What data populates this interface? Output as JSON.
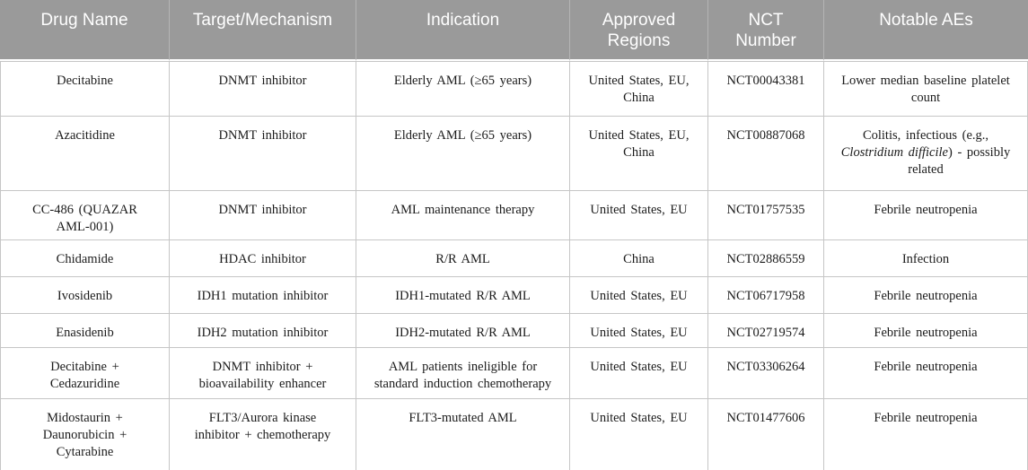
{
  "colors": {
    "header_bg": "#9a9a9a",
    "header_text": "#ffffff",
    "header_divider": "#b5b5b5",
    "grid_border": "#c6c6c6",
    "bottom_border": "#a9a9a9",
    "body_text": "#1b1b1b",
    "page_bg": "#ffffff"
  },
  "table": {
    "columns": [
      {
        "key": "drug-name",
        "label": "Drug Name"
      },
      {
        "key": "target-mechanism",
        "label": "Target/Mechanism"
      },
      {
        "key": "indication",
        "label": "Indication"
      },
      {
        "key": "approved-regions",
        "label": "Approved\nRegions"
      },
      {
        "key": "nct-number",
        "label": "NCT\nNumber"
      },
      {
        "key": "notable-aes",
        "label": "Notable AEs"
      }
    ],
    "rows": [
      {
        "cells": [
          "Decitabine",
          "DNMT inhibitor",
          "Elderly AML (≥65 years)",
          "United States, EU,\nChina",
          "NCT00043381",
          "Lower median baseline platelet\ncount"
        ]
      },
      {
        "cells": [
          "Azacitidine",
          "DNMT inhibitor",
          "Elderly AML (≥65 years)",
          "United States, EU,\nChina",
          "NCT00887068",
          [
            {
              "text": "Colitis, infectious (e.g.,\n"
            },
            {
              "text": "Clostridium difficile",
              "italic": true
            },
            {
              "text": ") - possibly\nrelated"
            }
          ]
        ]
      },
      {
        "cells": [
          "CC-486 (QUAZAR\nAML-001)",
          "DNMT inhibitor",
          "AML maintenance therapy",
          "United States, EU",
          "NCT01757535",
          "Febrile neutropenia"
        ]
      },
      {
        "cells": [
          "Chidamide",
          "HDAC inhibitor",
          "R/R AML",
          "China",
          "NCT02886559",
          "Infection"
        ]
      },
      {
        "cells": [
          "Ivosidenib",
          "IDH1 mutation inhibitor",
          "IDH1-mutated R/R AML",
          "United States, EU",
          "NCT06717958",
          "Febrile neutropenia"
        ]
      },
      {
        "cells": [
          "Enasidenib",
          "IDH2 mutation inhibitor",
          "IDH2-mutated R/R AML",
          "United States, EU",
          "NCT02719574",
          "Febrile neutropenia"
        ]
      },
      {
        "cells": [
          "Decitabine +\nCedazuridine",
          "DNMT inhibitor +\nbioavailability enhancer",
          "AML patients ineligible for\nstandard induction chemotherapy",
          "United States, EU",
          "NCT03306264",
          "Febrile neutropenia"
        ]
      },
      {
        "cells": [
          "Midostaurin +\nDaunorubicin +\nCytarabine",
          "FLT3/Aurora kinase\ninhibitor + chemotherapy",
          "FLT3-mutated AML",
          "United States, EU",
          "NCT01477606",
          "Febrile neutropenia"
        ]
      }
    ]
  }
}
